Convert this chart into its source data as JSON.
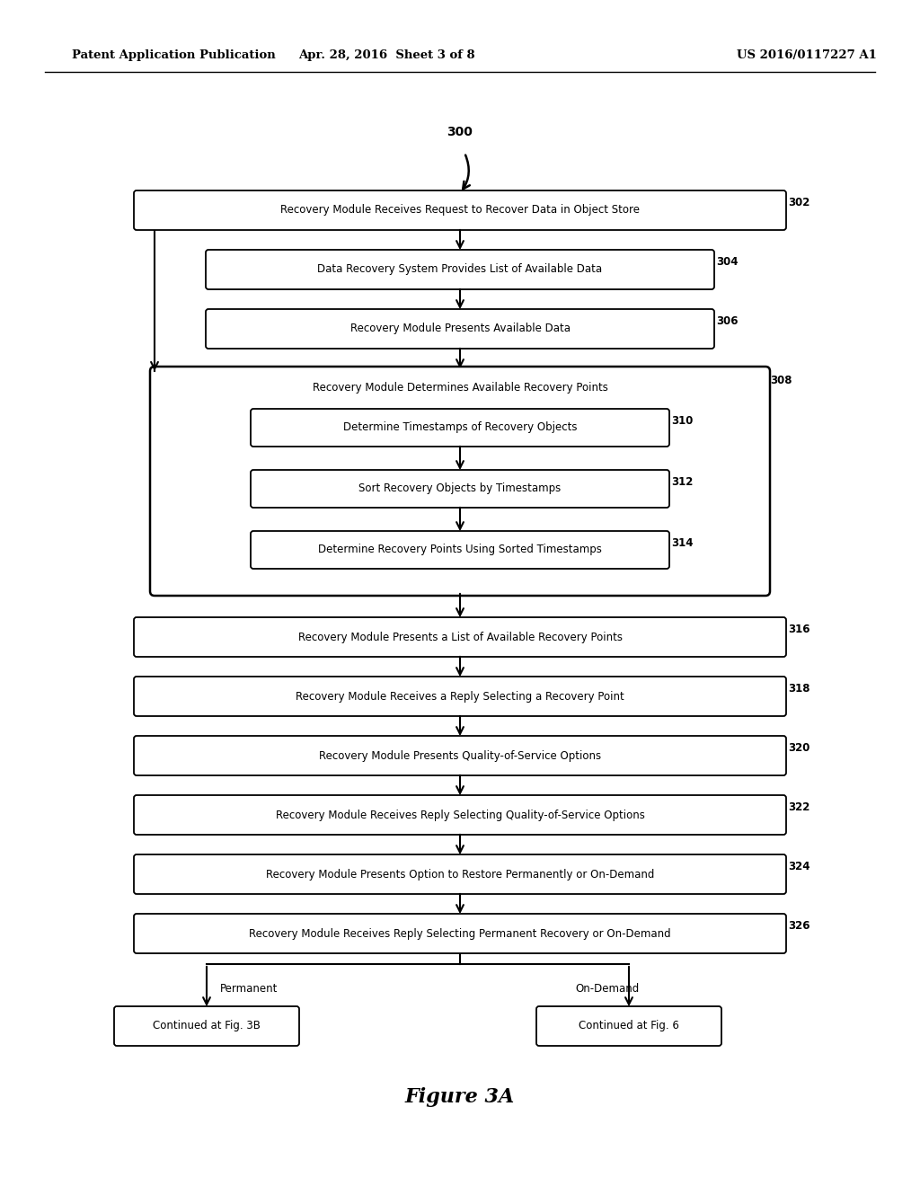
{
  "bg_color": "#ffffff",
  "header_left": "Patent Application Publication",
  "header_center": "Apr. 28, 2016  Sheet 3 of 8",
  "header_right": "US 2016/0117227 A1",
  "figure_title": "Figure 3A",
  "start_label": "300",
  "box302_text": "Recovery Module Receives Request to Recover Data in Object Store",
  "box304_text": "Data Recovery System Provides List of Available Data",
  "box306_text": "Recovery Module Presents Available Data",
  "box308_text": "Recovery Module Determines Available Recovery Points",
  "box310_text": "Determine Timestamps of Recovery Objects",
  "box312_text": "Sort Recovery Objects by Timestamps",
  "box314_text": "Determine Recovery Points Using Sorted Timestamps",
  "box316_text": "Recovery Module Presents a List of Available Recovery Points",
  "box318_text": "Recovery Module Receives a Reply Selecting a Recovery Point",
  "box320_text": "Recovery Module Presents Quality-of-Service Options",
  "box322_text": "Recovery Module Receives Reply Selecting Quality-of-Service Options",
  "box324_text": "Recovery Module Presents Option to Restore Permanently or On-Demand",
  "box326_text": "Recovery Module Receives Reply Selecting Permanent Recovery or On-Demand",
  "end_left_label": "Permanent",
  "end_right_label": "On-Demand",
  "end_left_text": "Continued at Fig. 3B",
  "end_right_text": "Continued at Fig. 6",
  "label_302": "302",
  "label_304": "304",
  "label_306": "306",
  "label_308": "308",
  "label_310": "310",
  "label_312": "312",
  "label_314": "314",
  "label_316": "316",
  "label_318": "318",
  "label_320": "320",
  "label_322": "322",
  "label_324": "324",
  "label_326": "326"
}
